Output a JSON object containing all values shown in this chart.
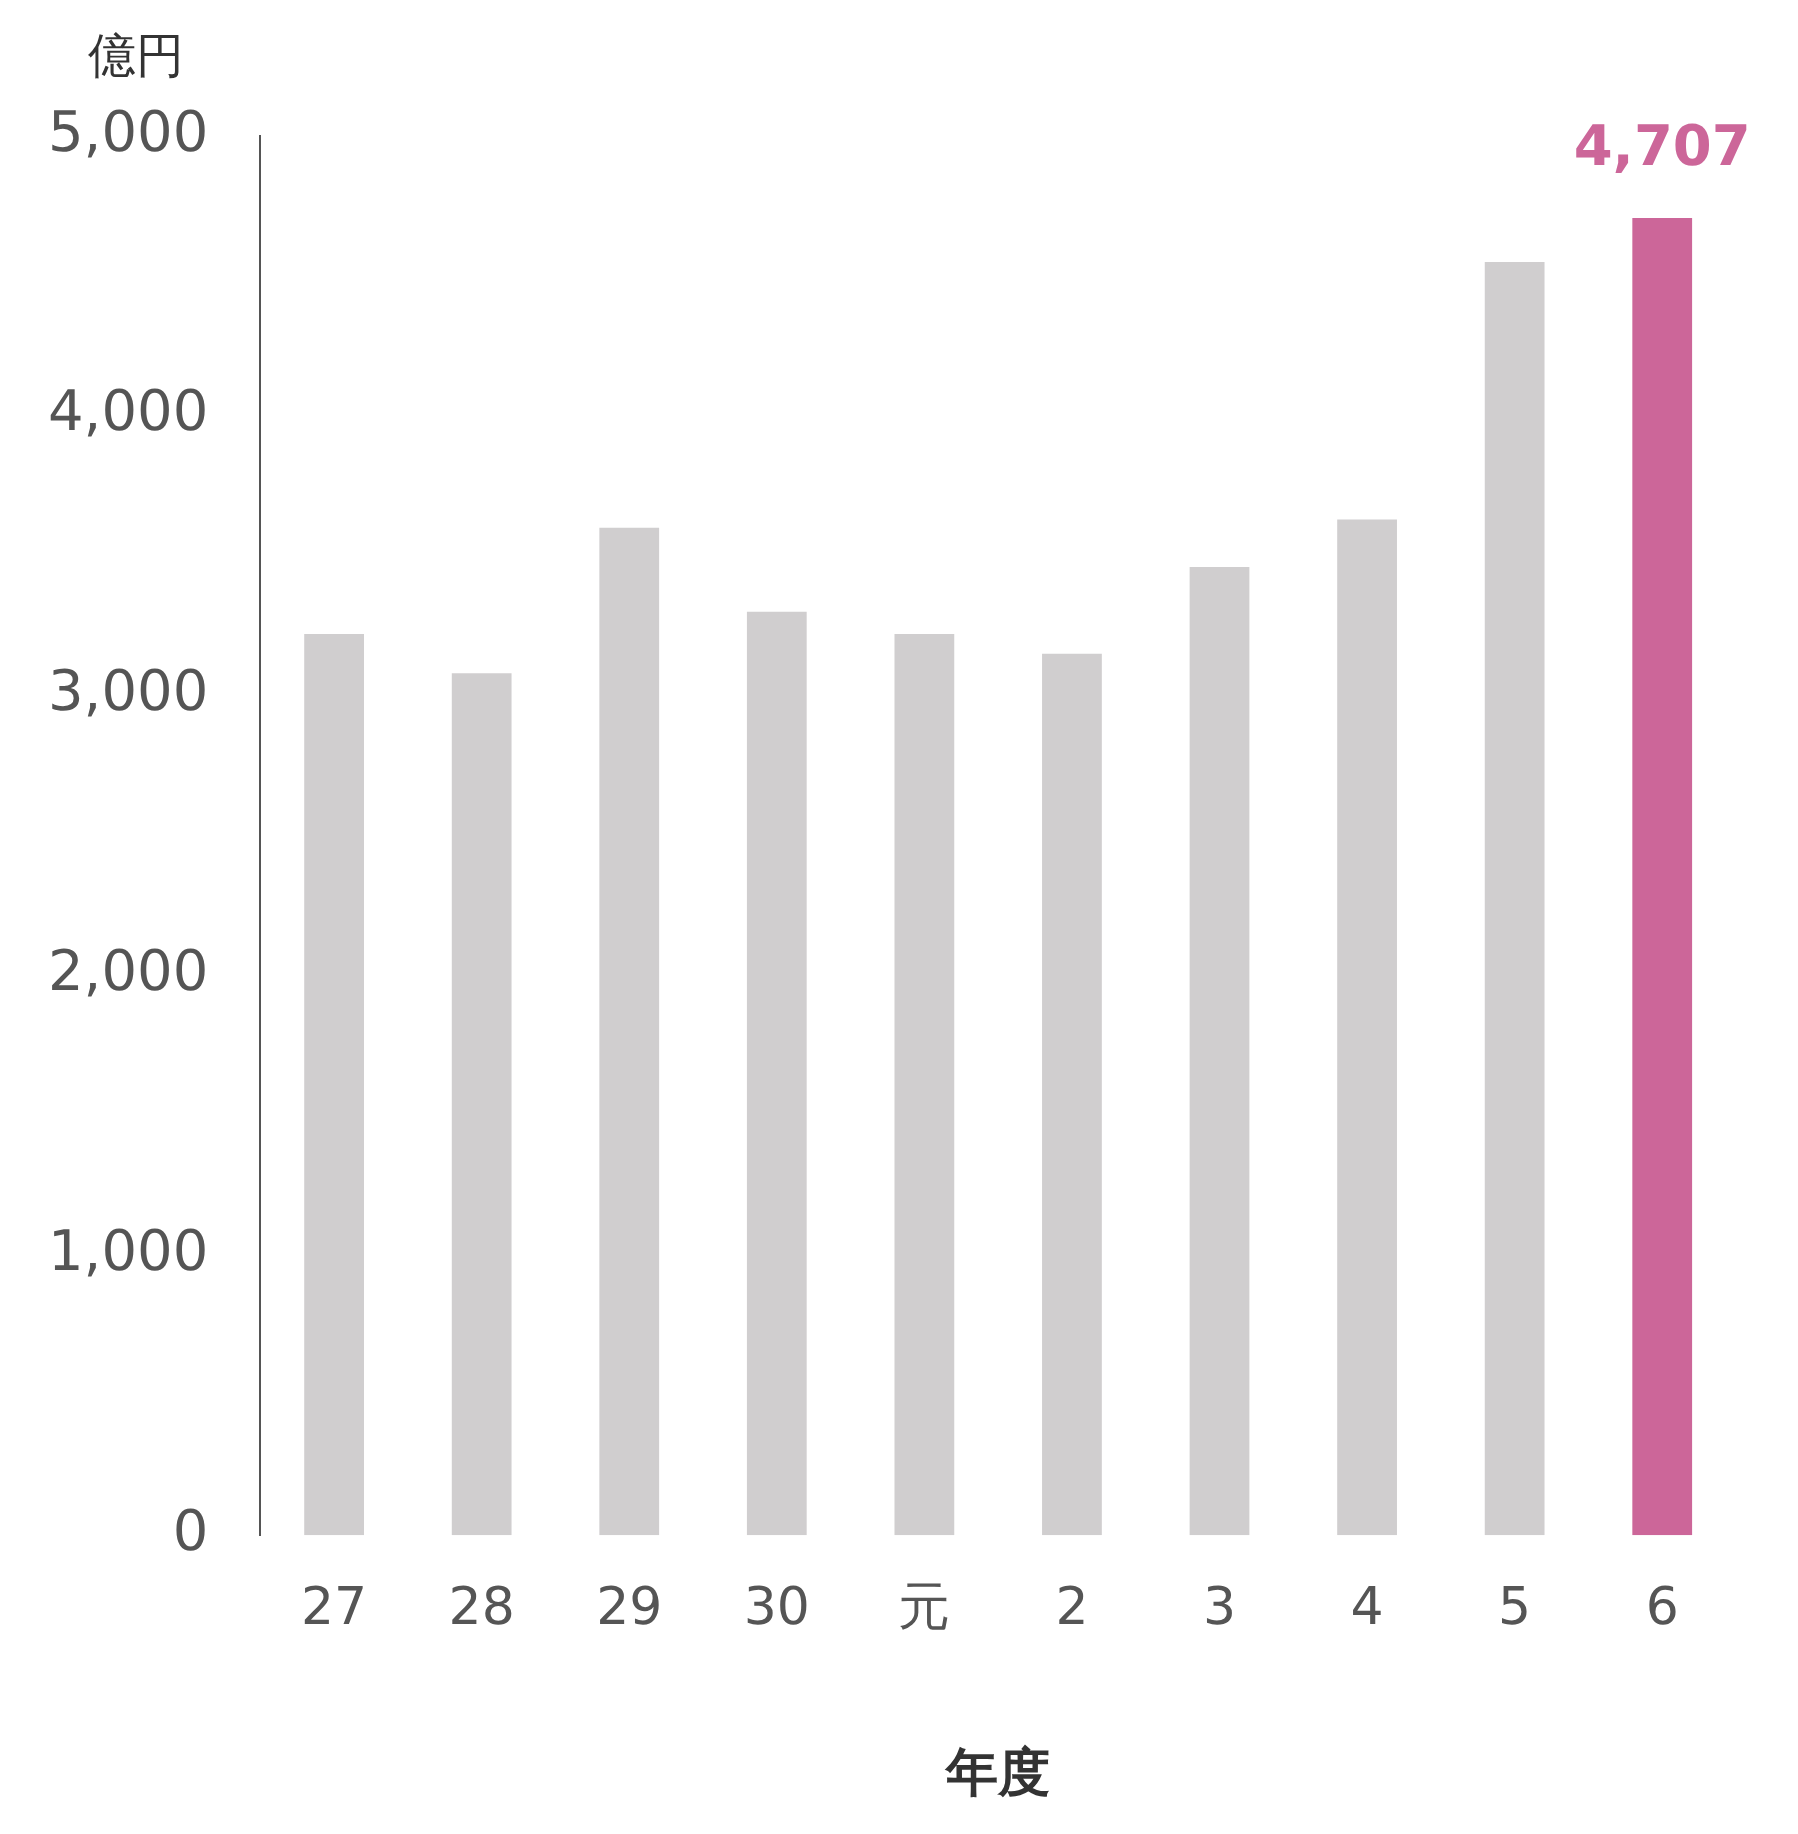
{
  "chart_data": {
    "type": "bar",
    "xlabel": "年度",
    "ylabel": "億円",
    "categories": [
      "27",
      "28",
      "29",
      "30",
      "元",
      "2",
      "3",
      "4",
      "5",
      "6"
    ],
    "values": [
      3220,
      3080,
      3600,
      3300,
      3220,
      3150,
      3460,
      3630,
      4550,
      4707
    ],
    "colors": [
      "#d0cecf",
      "#d0cecf",
      "#d0cecf",
      "#d0cecf",
      "#d0cecf",
      "#d0cecf",
      "#d0cecf",
      "#d0cecf",
      "#d0cecf",
      "#cc6699"
    ],
    "value_labels": [
      null,
      null,
      null,
      null,
      null,
      null,
      null,
      null,
      null,
      "4,707"
    ],
    "ylim": [
      0,
      5000
    ],
    "yticks": [
      {
        "value": 0,
        "label": "0"
      },
      {
        "value": 1000,
        "label": "1,000"
      },
      {
        "value": 2000,
        "label": "2,000"
      },
      {
        "value": 3000,
        "label": "3,000"
      },
      {
        "value": 4000,
        "label": "4,000"
      },
      {
        "value": 5000,
        "label": "5,000"
      }
    ],
    "grid": false,
    "legend": false
  }
}
